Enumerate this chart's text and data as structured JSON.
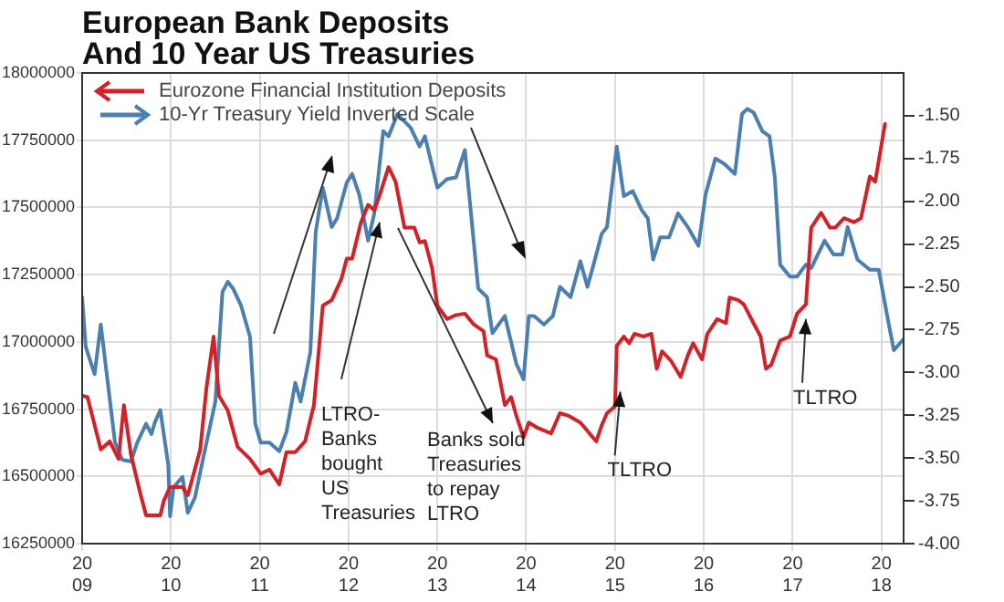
{
  "chart_data": {
    "type": "line",
    "title": "European Bank Deposits\nAnd 10 Year US Treasuries",
    "xlim": [
      2009,
      2018.25
    ],
    "xticks": [
      2009,
      2010,
      2011,
      2012,
      2013,
      2014,
      2015,
      2016,
      2017,
      2018
    ],
    "ylim": [
      16250000,
      18000000
    ],
    "yticks": [
      16250000,
      16500000,
      16750000,
      17000000,
      17250000,
      17500000,
      17750000,
      18000000
    ],
    "y2lim": [
      -4.0,
      -1.25
    ],
    "y2ticks": [
      {
        "value": -4.0,
        "label": "-4.00"
      },
      {
        "value": -3.75,
        "label": "-3.75"
      },
      {
        "value": -3.5,
        "label": "-3.50"
      },
      {
        "value": -3.25,
        "label": "-3.25"
      },
      {
        "value": -3.0,
        "label": "-3.00"
      },
      {
        "value": -2.75,
        "label": "-2.75"
      },
      {
        "value": -2.5,
        "label": "-2.50"
      },
      {
        "value": -2.25,
        "label": "-2.25"
      },
      {
        "value": -2.0,
        "label": "-2.00"
      },
      {
        "value": -1.75,
        "label": "-1.75"
      },
      {
        "value": -1.5,
        "label": "-1.50"
      }
    ],
    "grid": true,
    "legend": "top left",
    "series": [
      {
        "name": "Eurozone Financial Institution Deposits",
        "color": "#d42027",
        "x": [
          2009.0,
          2009.06,
          2009.21,
          2009.31,
          2009.41,
          2009.47,
          2009.55,
          2009.66,
          2009.72,
          2009.88,
          2009.92,
          2009.99,
          2010.13,
          2010.19,
          2010.33,
          2010.4,
          2010.48,
          2010.54,
          2010.64,
          2010.75,
          2010.89,
          2011.01,
          2011.11,
          2011.22,
          2011.3,
          2011.4,
          2011.51,
          2011.61,
          2011.71,
          2011.81,
          2011.92,
          2011.98,
          2012.04,
          2012.14,
          2012.22,
          2012.29,
          2012.35,
          2012.45,
          2012.53,
          2012.63,
          2012.74,
          2012.8,
          2012.86,
          2012.94,
          2013.0,
          2013.11,
          2013.21,
          2013.31,
          2013.41,
          2013.52,
          2013.56,
          2013.66,
          2013.76,
          2013.83,
          2013.89,
          2013.97,
          2014.03,
          2014.13,
          2014.28,
          2014.38,
          2014.48,
          2014.61,
          2014.79,
          2014.85,
          2014.91,
          2015.0,
          2015.02,
          2015.1,
          2015.16,
          2015.22,
          2015.32,
          2015.41,
          2015.47,
          2015.53,
          2015.63,
          2015.74,
          2015.82,
          2015.88,
          2015.98,
          2016.04,
          2016.15,
          2016.25,
          2016.29,
          2016.39,
          2016.45,
          2016.56,
          2016.64,
          2016.7,
          2016.76,
          2016.86,
          2016.97,
          2017.05,
          2017.15,
          2017.21,
          2017.32,
          2017.42,
          2017.48,
          2017.58,
          2017.69,
          2017.77,
          2017.87,
          2017.93,
          2018.04
        ],
        "values": [
          16800000,
          16795000,
          16600000,
          16630000,
          16565000,
          16765000,
          16580000,
          16430000,
          16355000,
          16355000,
          16410000,
          16460000,
          16460000,
          16430000,
          16600000,
          16830000,
          17020000,
          16800000,
          16745000,
          16610000,
          16565000,
          16510000,
          16525000,
          16470000,
          16590000,
          16590000,
          16630000,
          16765000,
          17135000,
          17155000,
          17235000,
          17310000,
          17310000,
          17445000,
          17510000,
          17490000,
          17545000,
          17650000,
          17595000,
          17425000,
          17425000,
          17370000,
          17375000,
          17275000,
          17135000,
          17085000,
          17100000,
          17105000,
          17065000,
          17040000,
          16950000,
          16935000,
          16765000,
          16795000,
          16725000,
          16645000,
          16700000,
          16680000,
          16660000,
          16735000,
          16725000,
          16700000,
          16630000,
          16690000,
          16735000,
          16760000,
          16985000,
          17020000,
          16995000,
          17030000,
          17020000,
          17030000,
          16900000,
          16965000,
          16930000,
          16870000,
          16950000,
          16995000,
          16935000,
          17030000,
          17085000,
          17070000,
          17165000,
          17155000,
          17140000,
          17070000,
          17020000,
          16900000,
          16915000,
          17005000,
          17020000,
          17105000,
          17140000,
          17425000,
          17480000,
          17425000,
          17425000,
          17460000,
          17445000,
          17460000,
          17615000,
          17595000,
          17810000
        ]
      },
      {
        "name": "10-Yr Treasury Yield Inverted Scale",
        "color": "#4a7fb0",
        "axis": "y2",
        "x": [
          2009.0,
          2009.04,
          2009.14,
          2009.21,
          2009.27,
          2009.37,
          2009.45,
          2009.55,
          2009.62,
          2009.72,
          2009.78,
          2009.82,
          2009.88,
          2009.97,
          2009.99,
          2010.03,
          2010.13,
          2010.19,
          2010.27,
          2010.4,
          2010.5,
          2010.58,
          2010.64,
          2010.7,
          2010.79,
          2010.89,
          2010.95,
          2011.01,
          2011.11,
          2011.22,
          2011.3,
          2011.4,
          2011.46,
          2011.57,
          2011.63,
          2011.71,
          2011.81,
          2011.87,
          2011.98,
          2012.04,
          2012.12,
          2012.22,
          2012.29,
          2012.39,
          2012.45,
          2012.55,
          2012.7,
          2012.8,
          2012.86,
          2013.0,
          2013.11,
          2013.21,
          2013.31,
          2013.46,
          2013.56,
          2013.62,
          2013.76,
          2013.89,
          2013.97,
          2014.03,
          2014.09,
          2014.2,
          2014.3,
          2014.38,
          2014.5,
          2014.61,
          2014.69,
          2014.79,
          2014.85,
          2014.91,
          2015.02,
          2015.1,
          2015.2,
          2015.3,
          2015.37,
          2015.43,
          2015.51,
          2015.61,
          2015.71,
          2015.82,
          2015.94,
          2016.02,
          2016.13,
          2016.23,
          2016.35,
          2016.43,
          2016.49,
          2016.56,
          2016.66,
          2016.74,
          2016.8,
          2016.86,
          2016.97,
          2017.05,
          2017.15,
          2017.21,
          2017.36,
          2017.46,
          2017.56,
          2017.62,
          2017.73,
          2017.87,
          2017.97,
          2018.08,
          2018.14,
          2018.24
        ],
        "values": [
          -2.56,
          -2.85,
          -3.01,
          -2.72,
          -2.98,
          -3.41,
          -3.51,
          -3.52,
          -3.41,
          -3.3,
          -3.36,
          -3.29,
          -3.22,
          -3.54,
          -3.84,
          -3.67,
          -3.61,
          -3.82,
          -3.73,
          -3.41,
          -3.17,
          -2.53,
          -2.47,
          -2.51,
          -2.61,
          -2.79,
          -3.3,
          -3.41,
          -3.41,
          -3.46,
          -3.35,
          -3.06,
          -3.17,
          -2.88,
          -2.18,
          -1.92,
          -2.15,
          -2.1,
          -1.89,
          -1.84,
          -1.96,
          -2.23,
          -2.07,
          -1.59,
          -1.62,
          -1.49,
          -1.57,
          -1.68,
          -1.62,
          -1.92,
          -1.87,
          -1.86,
          -1.7,
          -2.51,
          -2.56,
          -2.77,
          -2.67,
          -2.95,
          -3.04,
          -2.67,
          -2.67,
          -2.72,
          -2.67,
          -2.5,
          -2.56,
          -2.35,
          -2.5,
          -2.31,
          -2.19,
          -2.15,
          -1.68,
          -1.97,
          -1.94,
          -2.05,
          -2.1,
          -2.34,
          -2.21,
          -2.21,
          -2.07,
          -2.15,
          -2.26,
          -1.96,
          -1.75,
          -1.78,
          -1.84,
          -1.49,
          -1.46,
          -1.48,
          -1.59,
          -1.62,
          -1.86,
          -2.37,
          -2.44,
          -2.44,
          -2.37,
          -2.39,
          -2.23,
          -2.31,
          -2.31,
          -2.15,
          -2.34,
          -2.4,
          -2.4,
          -2.71,
          -2.87,
          -2.81
        ]
      }
    ],
    "annotations": [
      {
        "text": "LTRO-\nBanks\nbought\nUS\nTreasuries",
        "x": 2012.35,
        "y": 17445000
      },
      "Banks sold\nTreasuries\nto repay\nLTRO",
      {
        "text": "TLTRO",
        "x": 2015.06,
        "y": 16815000
      },
      {
        "text": "TLTRO",
        "x": 2017.15,
        "y": 17085000
      }
    ]
  }
}
